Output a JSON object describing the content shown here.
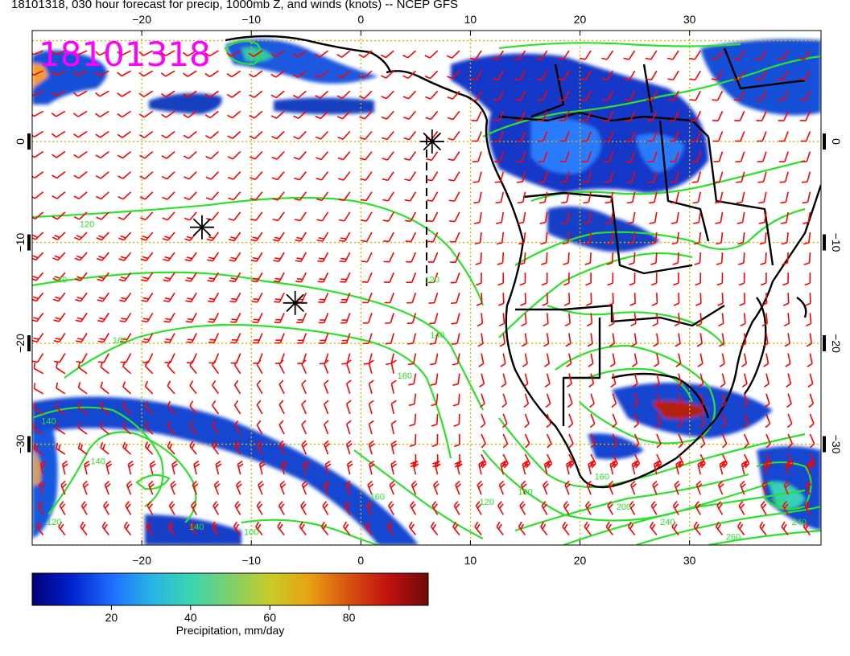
{
  "title": "18101318, 030 hour forecast for precip, 1000mb Z, and winds (knots) -- NCEP GFS",
  "stamp": "18101318",
  "map": {
    "lon_range": [
      -30,
      42
    ],
    "lat_range": [
      -40,
      11
    ],
    "lon_ticks": [
      -20,
      -10,
      0,
      10,
      20,
      30
    ],
    "lat_ticks": [
      0,
      -10,
      -20,
      -30
    ],
    "lon_tick_labels": [
      "−20",
      "−10",
      "0",
      "10",
      "20",
      "30"
    ],
    "lat_tick_labels": [
      "0",
      "−10",
      "−20",
      "−30"
    ],
    "grid": true,
    "grid_color": "#d6b400",
    "wind_barb_color": "#ff0000",
    "contour_color": "#2ee02e",
    "coast_color": "#000000",
    "contour_labels": [
      {
        "text": "120",
        "lon": -25,
        "lat": -8.5
      },
      {
        "text": "140",
        "lon": -27.5,
        "lat": -14
      },
      {
        "text": "160",
        "lon": -22,
        "lat": -20
      },
      {
        "text": "120",
        "lon": 6.5,
        "lat": -14
      },
      {
        "text": "140",
        "lon": 7,
        "lat": -19.5
      },
      {
        "text": "160",
        "lon": 4,
        "lat": -23.5
      },
      {
        "text": "140",
        "lon": -28.5,
        "lat": -28
      },
      {
        "text": "140",
        "lon": -24,
        "lat": -32
      },
      {
        "text": "160",
        "lon": 1.5,
        "lat": -35.5
      },
      {
        "text": "100",
        "lon": -10,
        "lat": -39
      },
      {
        "text": "120",
        "lon": -28,
        "lat": -38
      },
      {
        "text": "140",
        "lon": -15,
        "lat": -38.5
      },
      {
        "text": "100",
        "lon": 15,
        "lat": -35
      },
      {
        "text": "120",
        "lon": 11.5,
        "lat": -36
      },
      {
        "text": "160",
        "lon": 22,
        "lat": -33.5
      },
      {
        "text": "200",
        "lon": 24,
        "lat": -36.5
      },
      {
        "text": "240",
        "lon": 28,
        "lat": -38
      },
      {
        "text": "260",
        "lon": 34,
        "lat": -39.5
      },
      {
        "text": "200",
        "lon": 38,
        "lat": -36
      },
      {
        "text": "240",
        "lon": 40,
        "lat": -38
      }
    ],
    "low_centers": [
      {
        "lon": -14.5,
        "lat": -8.5
      },
      {
        "lon": -6,
        "lat": -16
      },
      {
        "lon": 6.5,
        "lat": 0
      }
    ]
  },
  "colorbar": {
    "ticks": [
      20,
      40,
      60,
      80
    ],
    "range": [
      0,
      100
    ],
    "label": "Precipitation, mm/day",
    "colors": [
      "#00007a",
      "#0022cc",
      "#1e6cff",
      "#28b4e6",
      "#39d6b0",
      "#7ed06a",
      "#c8cc28",
      "#e8a014",
      "#d85010",
      "#c01010",
      "#6e0a0a"
    ]
  }
}
